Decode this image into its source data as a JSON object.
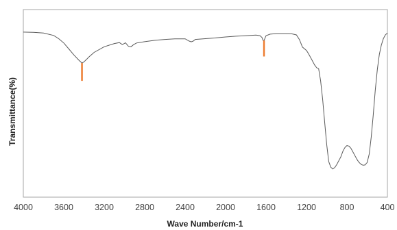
{
  "chart_data": {
    "type": "line",
    "title": "",
    "xlabel": "Wave Number/cm-1",
    "ylabel": "Transmittance(%)",
    "x_reversed": true,
    "xlim": [
      4000,
      400
    ],
    "ylim": [
      0,
      100
    ],
    "x_ticks": [
      4000,
      3600,
      3200,
      2800,
      2400,
      2000,
      1600,
      1200,
      800,
      400
    ],
    "grid": false,
    "legend": "none",
    "line_color": "#595959",
    "marker_color": "#ed7d31",
    "series": [
      {
        "x": [
          4000,
          3900,
          3800,
          3700,
          3650,
          3600,
          3550,
          3500,
          3450,
          3420,
          3400,
          3350,
          3300,
          3200,
          3100,
          3050,
          3020,
          2990,
          2960,
          2935,
          2910,
          2880,
          2800,
          2700,
          2600,
          2500,
          2400,
          2360,
          2340,
          2320,
          2300,
          2200,
          2100,
          2000,
          1900,
          1800,
          1700,
          1660,
          1640,
          1630,
          1620,
          1600,
          1560,
          1500,
          1400,
          1350,
          1300,
          1270,
          1240,
          1200,
          1180,
          1150,
          1120,
          1100,
          1080,
          1060,
          1040,
          1020,
          1000,
          980,
          960,
          940,
          920,
          900,
          880,
          860,
          840,
          820,
          800,
          780,
          760,
          740,
          720,
          700,
          680,
          660,
          640,
          620,
          600,
          580,
          560,
          540,
          520,
          500,
          480,
          460,
          440,
          420,
          400
        ],
        "y": [
          88,
          87.9,
          87.5,
          86.2,
          84.5,
          82.2,
          79,
          75.8,
          73,
          71.5,
          72.1,
          74.8,
          77.2,
          80.2,
          81.9,
          82.4,
          81.3,
          82.3,
          80.4,
          80.2,
          81.3,
          82.2,
          82.9,
          83.6,
          84.1,
          84.4,
          84.4,
          83.2,
          82.8,
          83.2,
          84.1,
          84.5,
          84.9,
          85.4,
          85.8,
          86.1,
          86.4,
          86.1,
          85.1,
          83.6,
          83.5,
          86.1,
          86.9,
          87.2,
          87.2,
          87.1,
          86.5,
          84,
          80,
          78.2,
          76.5,
          73.5,
          70.5,
          69,
          68.5,
          62,
          52,
          40,
          28,
          19,
          16,
          15,
          15.8,
          17.5,
          19.5,
          21.5,
          24.5,
          26.5,
          27.5,
          27.2,
          26,
          24,
          22,
          20,
          18.5,
          17.5,
          17,
          17.2,
          18.5,
          23,
          32,
          44,
          57,
          68,
          76,
          81,
          84.5,
          86.5,
          87.5
        ]
      }
    ],
    "markers": [
      {
        "x": 3420,
        "y_top": 71.5,
        "y_bottom": 62
      },
      {
        "x": 1620,
        "y_top": 83.5,
        "y_bottom": 75
      }
    ]
  }
}
